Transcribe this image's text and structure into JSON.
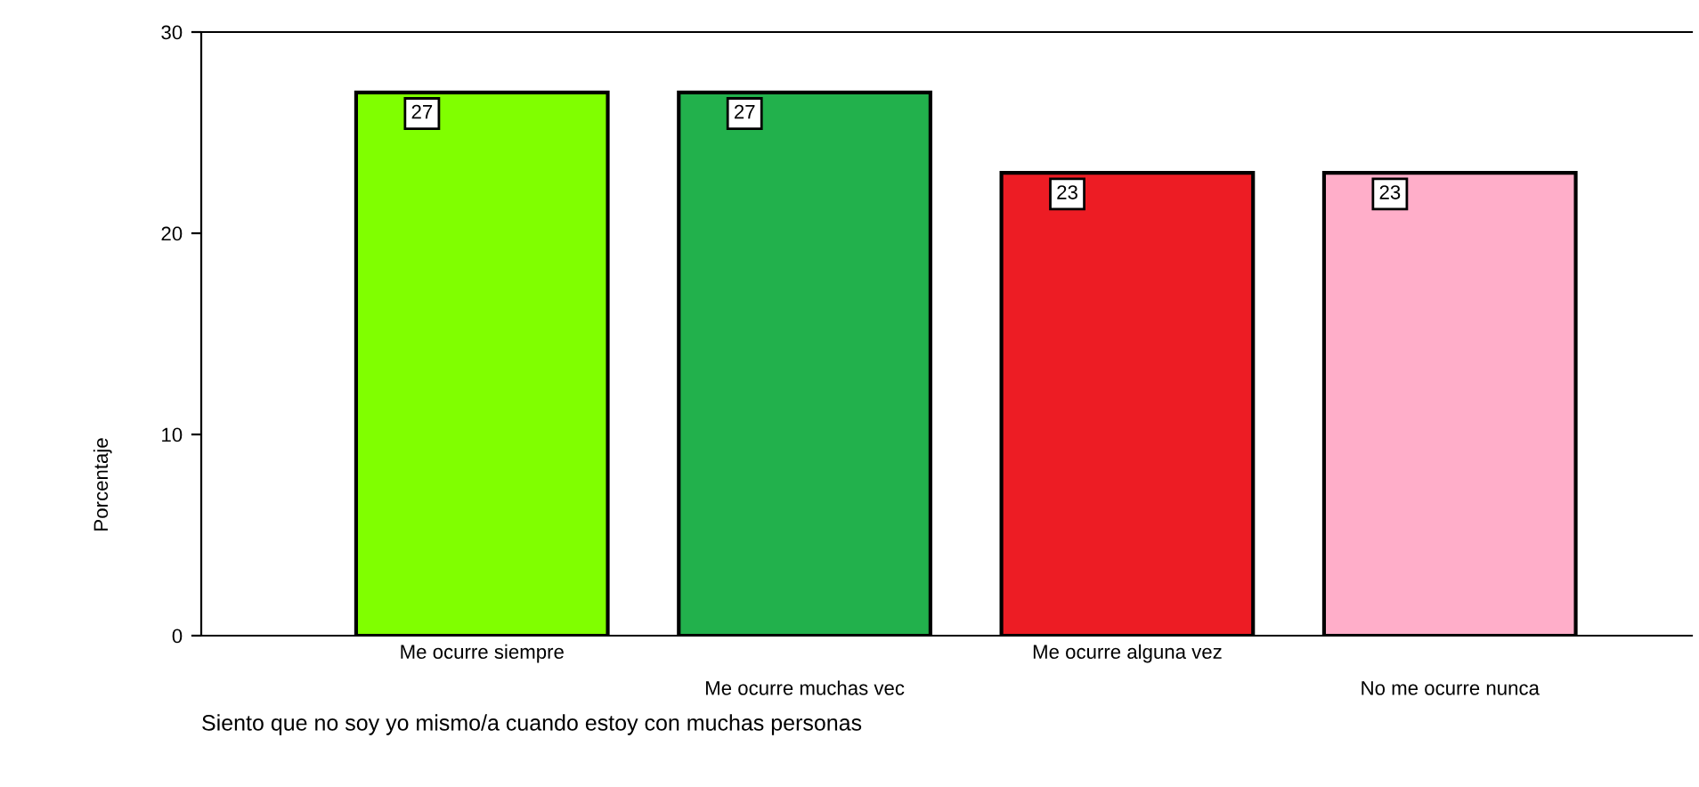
{
  "chart_data": {
    "type": "bar",
    "xlabel": "Siento que no soy yo mismo/a cuando estoy con muchas personas",
    "ylabel": "Porcentaje",
    "categories": [
      "Me ocurre siempre",
      "Me ocurre muchas vec",
      "Me ocurre alguna vez",
      "No me ocurre nunca"
    ],
    "values": [
      27,
      27,
      23,
      23
    ],
    "colors": [
      "#80ff00",
      "#22b14c",
      "#ed1c24",
      "#ffaec9"
    ],
    "ylim": [
      0,
      30
    ],
    "yticks": [
      0,
      10,
      20,
      30
    ],
    "data_labels": true,
    "grid": false
  }
}
